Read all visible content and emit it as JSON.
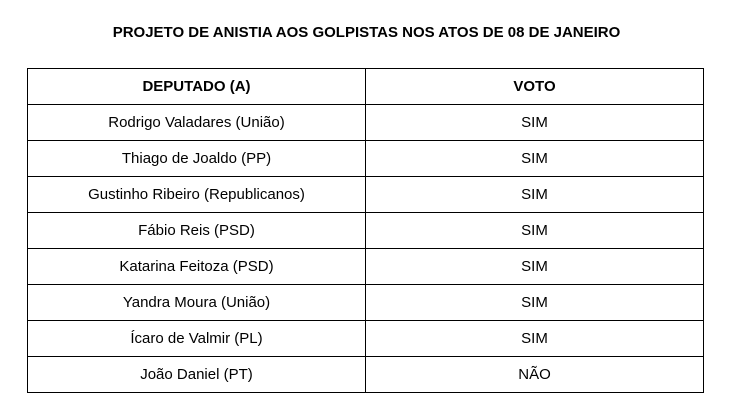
{
  "title": "PROJETO DE ANISTIA AOS GOLPISTAS NOS ATOS DE 08 DE JANEIRO",
  "table": {
    "headers": [
      "DEPUTADO (A)",
      "VOTO"
    ],
    "rows": [
      [
        "Rodrigo Valadares (União)",
        "SIM"
      ],
      [
        "Thiago de Joaldo (PP)",
        "SIM"
      ],
      [
        "Gustinho Ribeiro (Republicanos)",
        "SIM"
      ],
      [
        "Fábio Reis (PSD)",
        "SIM"
      ],
      [
        "Katarina Feitoza (PSD)",
        "SIM"
      ],
      [
        "Yandra Moura (União)",
        "SIM"
      ],
      [
        "Ícaro de Valmir (PL)",
        "SIM"
      ],
      [
        "João Daniel (PT)",
        "NÃO"
      ]
    ]
  }
}
